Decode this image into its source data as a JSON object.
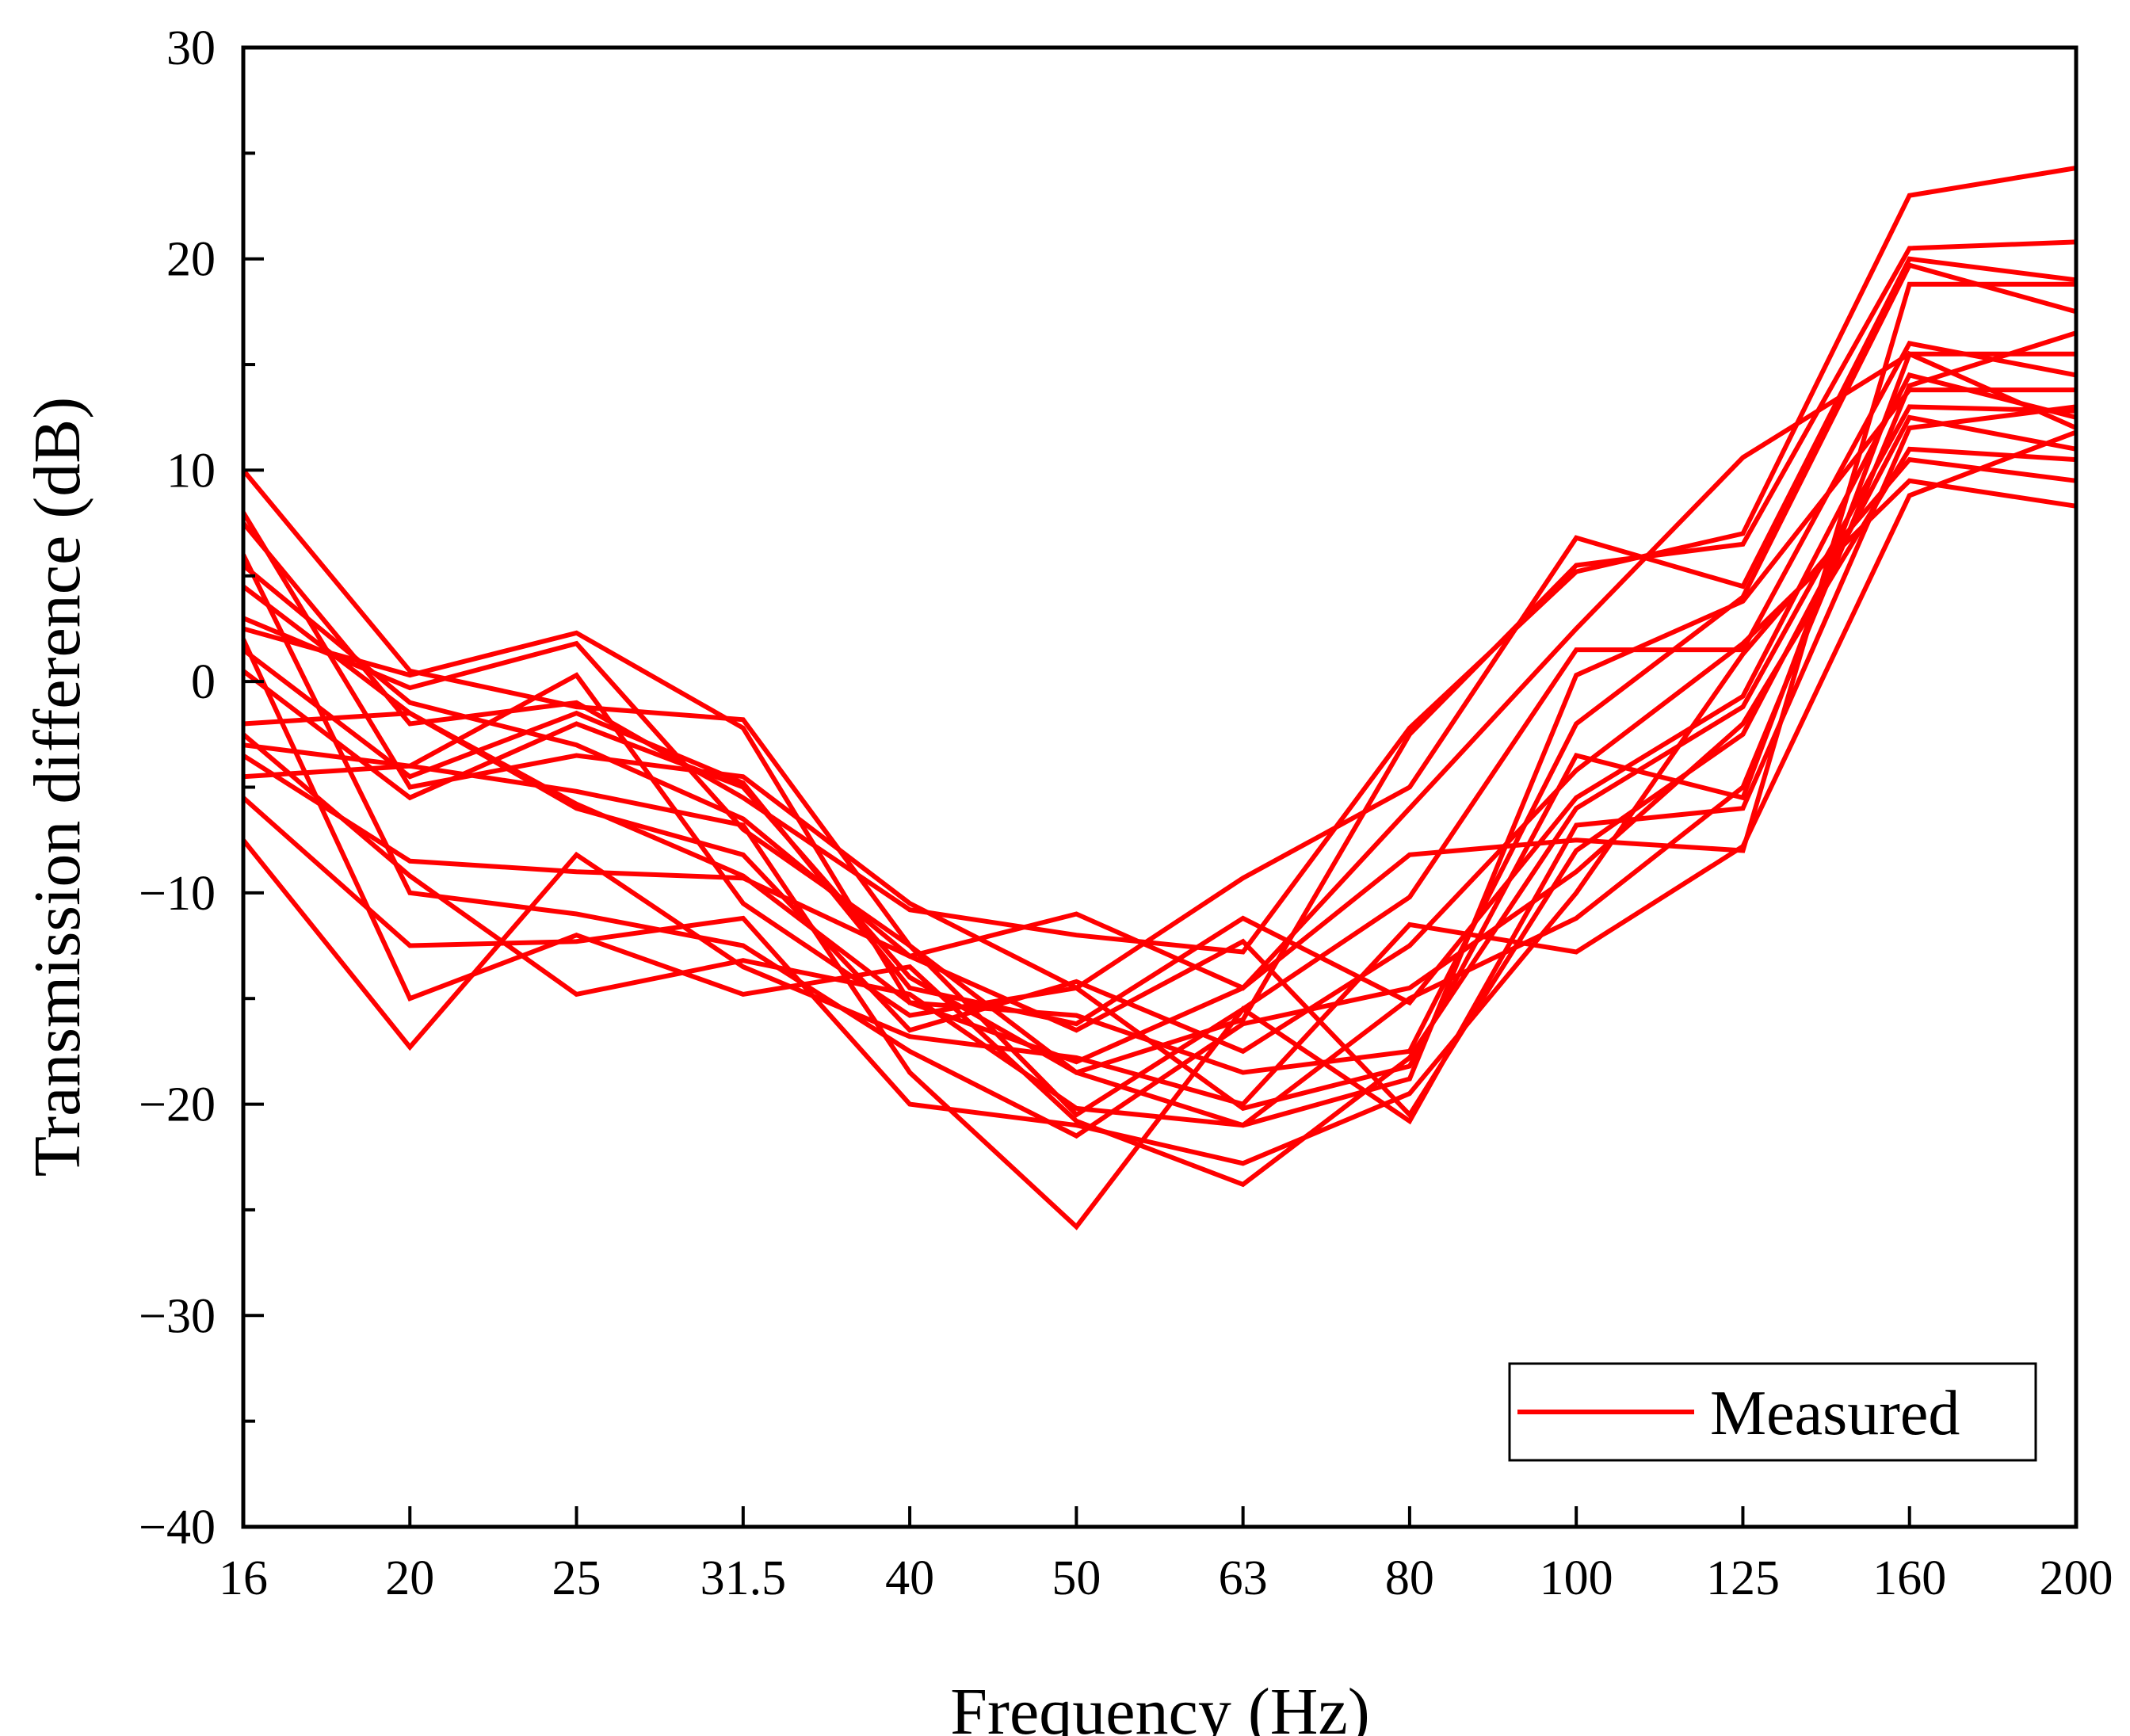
{
  "chart_data": {
    "type": "line",
    "title": "",
    "xlabel": "Frequency (Hz)",
    "ylabel": "Transmission difference (dB)",
    "categories": [
      "16",
      "20",
      "25",
      "31.5",
      "40",
      "50",
      "63",
      "80",
      "100",
      "125",
      "160",
      "200"
    ],
    "ylim": [
      -40,
      30
    ],
    "yticks": [
      30,
      20,
      10,
      0,
      -10,
      -20,
      -30,
      -40
    ],
    "ytick_labels": [
      "30",
      "20",
      "10",
      "0",
      "−10",
      "−20",
      "−30",
      "−40"
    ],
    "line_color": "#ff0000",
    "grid": false,
    "legend": {
      "label": "Measured",
      "position": "bottom-right"
    },
    "series": [
      {
        "name": "Measured",
        "values": [
          10,
          0.5,
          -1.2,
          -1.8,
          -12.5,
          -18.5,
          -16,
          -2.5,
          5.5,
          6.5,
          20.5,
          20.8
        ]
      },
      {
        "name": "Measured",
        "values": [
          8,
          -5,
          -3.5,
          -4.5,
          -10.5,
          -14.5,
          -9.3,
          -5,
          6.8,
          4.5,
          20,
          19
        ]
      },
      {
        "name": "Measured",
        "values": [
          7.5,
          -2,
          -1,
          -5.5,
          -10.8,
          -12,
          -12.8,
          -2.2,
          5.2,
          7,
          23,
          24.3
        ]
      },
      {
        "name": "Measured",
        "values": [
          5.5,
          -1,
          -3,
          -6.5,
          -13,
          -11,
          -14.5,
          -6,
          2.5,
          10.6,
          15.5,
          15.5
        ]
      },
      {
        "name": "Measured",
        "values": [
          4.5,
          -1.5,
          -5.8,
          -9.2,
          -15.2,
          -18,
          -14.5,
          -8.2,
          -7.5,
          -8,
          18.8,
          18.8
        ]
      },
      {
        "name": "Measured",
        "values": [
          3,
          -0.3,
          1.8,
          -7,
          -12.5,
          -20.5,
          -15.5,
          -10.2,
          1.5,
          1.5,
          16,
          14.5
        ]
      },
      {
        "name": "Measured",
        "values": [
          2.5,
          0.3,
          2.3,
          -2.2,
          -15.2,
          -15.8,
          -18.5,
          -17.5,
          -2,
          4,
          19.7,
          17.5
        ]
      },
      {
        "name": "Measured",
        "values": [
          1.5,
          -4.5,
          -1.5,
          -4.8,
          -14.5,
          -16.2,
          -11.2,
          -15.2,
          -5.5,
          -0.7,
          14.5,
          12.5
        ]
      },
      {
        "name": "Measured",
        "values": [
          0.5,
          -5.5,
          -2,
          -5,
          -14,
          -18.5,
          -21,
          -18.8,
          0.3,
          3.8,
          13.8,
          13.8
        ]
      },
      {
        "name": "Measured",
        "values": [
          -2,
          -1.5,
          -6,
          -8.2,
          -16.5,
          -14.2,
          -17.5,
          -12.5,
          -4.2,
          1.8,
          9.5,
          8.3
        ]
      },
      {
        "name": "Measured",
        "values": [
          -3,
          -4,
          0.3,
          -10.5,
          -15.8,
          -14.5,
          -20.2,
          -18.2,
          -3.5,
          -5.5,
          15.5,
          12
        ]
      },
      {
        "name": "Measured",
        "values": [
          -3.5,
          -8.5,
          -9,
          -9.3,
          -13,
          -16.5,
          -12.3,
          -20.5,
          -8,
          -2.5,
          12.5,
          11
        ]
      },
      {
        "name": "Measured",
        "values": [
          -4.5,
          -4,
          -5.2,
          -6.8,
          -18.5,
          -25.8,
          -15.5,
          -20.8,
          -6.8,
          -6,
          12,
          13
        ]
      },
      {
        "name": "Measured",
        "values": [
          -5.5,
          -12.5,
          -12.3,
          -11.2,
          -20,
          -21,
          -22.8,
          -19.5,
          -10,
          1.3,
          10.5,
          9.5
        ]
      },
      {
        "name": "Measured",
        "values": [
          -7.5,
          -17.3,
          -8.2,
          -13.5,
          -16.8,
          -17.8,
          -20,
          -11.5,
          -12.8,
          -7.8,
          8.8,
          11.8
        ]
      },
      {
        "name": "Measured",
        "values": [
          6,
          -10,
          -11,
          -12.5,
          -17.5,
          -21.5,
          -16.2,
          -14.5,
          -9,
          -2,
          11,
          10.5
        ]
      },
      {
        "name": "Measured",
        "values": [
          2,
          -15,
          -12,
          -14.8,
          -13.5,
          -20.8,
          -23.8,
          -17.8,
          -6,
          -1.2,
          13,
          12.8
        ]
      },
      {
        "name": "Measured",
        "values": [
          -2.5,
          -9.2,
          -14.8,
          -13.2,
          -14.8,
          -20.2,
          -21,
          -15,
          -11.2,
          -5,
          14,
          16.5
        ]
      }
    ]
  }
}
